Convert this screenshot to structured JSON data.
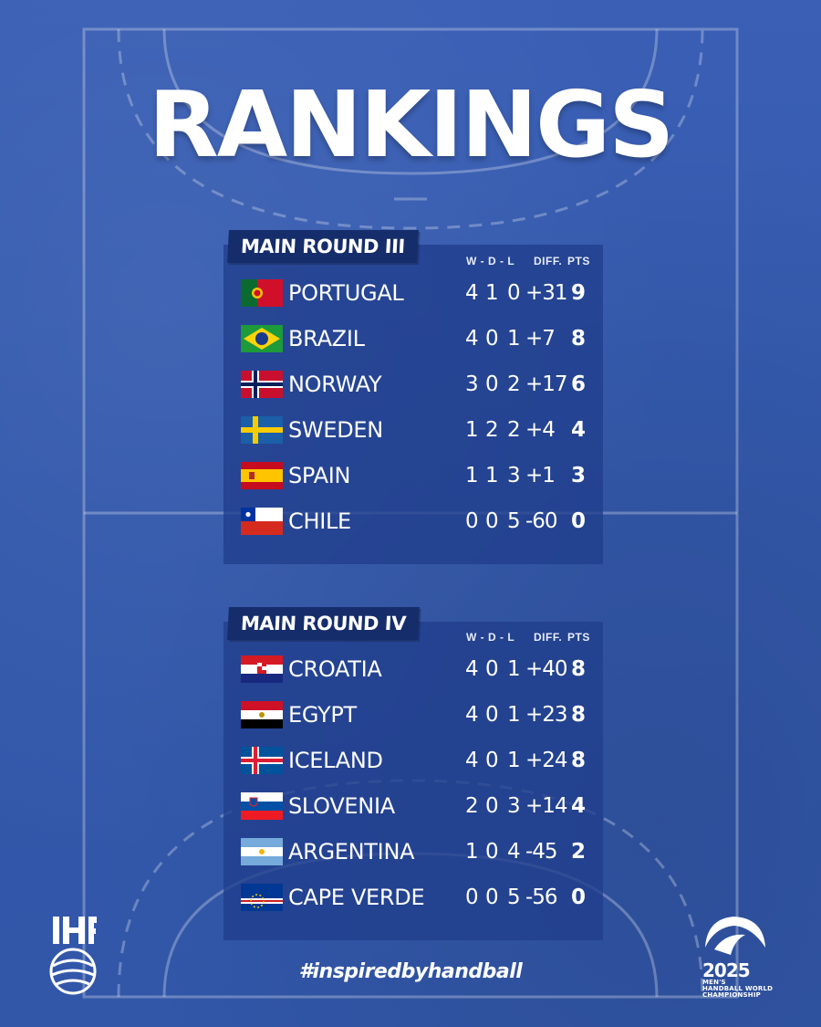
{
  "title": "RANKINGS",
  "hashtag": "#inspiredbyhandball",
  "columns": {
    "wdl": "W - D - L",
    "diff": "DIFF.",
    "pts": "PTS"
  },
  "groups": [
    {
      "name": "MAIN ROUND III",
      "teams": [
        {
          "name": "PORTUGAL",
          "flag": "portugal-flag",
          "w": "4",
          "d": "1",
          "l": "0",
          "diff": "+31",
          "pts": "9"
        },
        {
          "name": "BRAZIL",
          "flag": "brazil-flag",
          "w": "4",
          "d": "0",
          "l": "1",
          "diff": "+7",
          "pts": "8"
        },
        {
          "name": "NORWAY",
          "flag": "norway-flag",
          "w": "3",
          "d": "0",
          "l": "2",
          "diff": "+17",
          "pts": "6"
        },
        {
          "name": "SWEDEN",
          "flag": "sweden-flag",
          "w": "1",
          "d": "2",
          "l": "2",
          "diff": "+4",
          "pts": "4"
        },
        {
          "name": "SPAIN",
          "flag": "spain-flag",
          "w": "1",
          "d": "1",
          "l": "3",
          "diff": "+1",
          "pts": "3"
        },
        {
          "name": "CHILE",
          "flag": "chile-flag",
          "w": "0",
          "d": "0",
          "l": "5",
          "diff": "-60",
          "pts": "0"
        }
      ]
    },
    {
      "name": "MAIN ROUND IV",
      "teams": [
        {
          "name": "CROATIA",
          "flag": "croatia-flag",
          "w": "4",
          "d": "0",
          "l": "1",
          "diff": "+40",
          "pts": "8"
        },
        {
          "name": "EGYPT",
          "flag": "egypt-flag",
          "w": "4",
          "d": "0",
          "l": "1",
          "diff": "+23",
          "pts": "8"
        },
        {
          "name": "ICELAND",
          "flag": "iceland-flag",
          "w": "4",
          "d": "0",
          "l": "1",
          "diff": "+24",
          "pts": "8"
        },
        {
          "name": "SLOVENIA",
          "flag": "slovenia-flag",
          "w": "2",
          "d": "0",
          "l": "3",
          "diff": "+14",
          "pts": "4"
        },
        {
          "name": "ARGENTINA",
          "flag": "argentina-flag",
          "w": "1",
          "d": "0",
          "l": "4",
          "diff": "-45",
          "pts": "2"
        },
        {
          "name": "CAPE VERDE",
          "flag": "cape-verde-flag",
          "w": "0",
          "d": "0",
          "l": "5",
          "diff": "-56",
          "pts": "0"
        }
      ]
    }
  ],
  "logos": {
    "ihf": "IHF",
    "wc_year": "2025",
    "wc_line1": "MEN'S",
    "wc_line2": "HANDBALL WORLD",
    "wc_line3": "CHAMPIONSHIP"
  },
  "colors": {
    "background": "#3558ad",
    "panel": "#203e8c",
    "tag": "#162d6b"
  }
}
